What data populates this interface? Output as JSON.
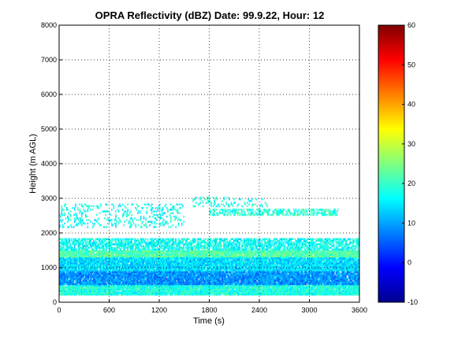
{
  "chart_data": {
    "type": "heatmap",
    "title": "OPRA Reflectivity (dBZ)  Date: 99.9.22, Hour: 12",
    "xlabel": "Time (s)",
    "ylabel": "Height (m AGL)",
    "xlim": [
      0,
      3600
    ],
    "ylim": [
      0,
      8000
    ],
    "xticks": [
      "0",
      "600",
      "1200",
      "1800",
      "2400",
      "3000",
      "3600"
    ],
    "yticks": [
      "0",
      "1000",
      "2000",
      "3000",
      "4000",
      "5000",
      "6000",
      "7000",
      "8000"
    ],
    "grid": true,
    "colorbar": {
      "colormap": "jet",
      "range": [
        -10,
        60
      ],
      "ticks": [
        "-10",
        "0",
        "10",
        "20",
        "30",
        "40",
        "50",
        "60"
      ]
    },
    "layers": [
      {
        "height_m": [
          200,
          500
        ],
        "time_s": [
          0,
          3600
        ],
        "dbz_typical": 18,
        "coverage": "continuous"
      },
      {
        "height_m": [
          500,
          900
        ],
        "time_s": [
          0,
          3600
        ],
        "dbz_typical": 9,
        "coverage": "continuous"
      },
      {
        "height_m": [
          900,
          1300
        ],
        "time_s": [
          0,
          3600
        ],
        "dbz_typical": 14,
        "coverage": "continuous"
      },
      {
        "height_m": [
          1300,
          1500
        ],
        "time_s": [
          0,
          3600
        ],
        "dbz_typical": 22,
        "coverage": "continuous"
      },
      {
        "height_m": [
          1500,
          1850
        ],
        "time_s": [
          0,
          3600
        ],
        "dbz_typical": 17,
        "coverage": "broken"
      },
      {
        "height_m": [
          2150,
          2850
        ],
        "time_s": [
          0,
          1500
        ],
        "dbz_typical": 17,
        "coverage": "sparse"
      },
      {
        "height_m": [
          2500,
          2700
        ],
        "time_s": [
          1800,
          3360
        ],
        "dbz_typical": 19,
        "coverage": "intermittent"
      },
      {
        "height_m": [
          2750,
          3050
        ],
        "time_s": [
          1600,
          2500
        ],
        "dbz_typical": 18,
        "coverage": "sparse"
      }
    ]
  }
}
